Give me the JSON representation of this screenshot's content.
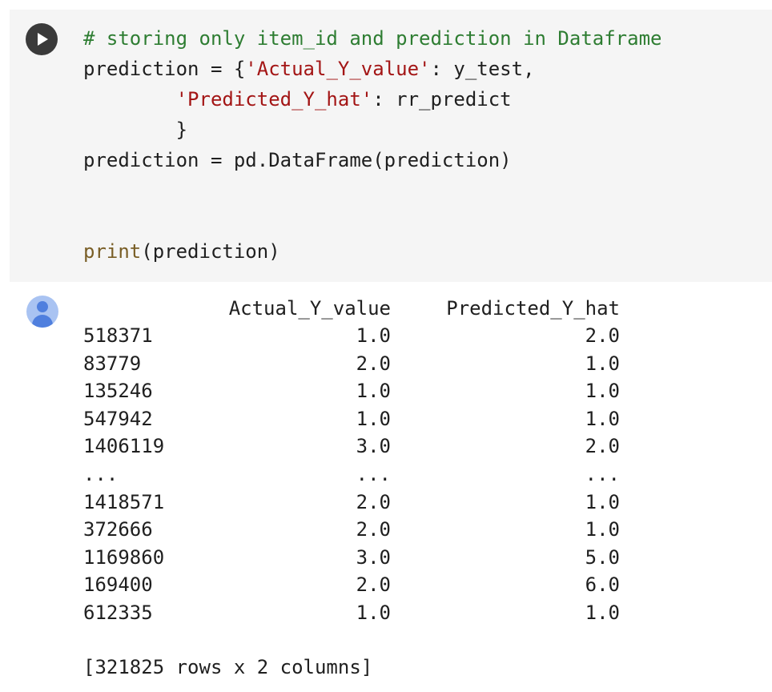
{
  "code_cell": {
    "run_button_icon": "play-icon",
    "lines": [
      [
        {
          "t": "# storing only item_id and prediction in Dataframe",
          "c": "comment"
        }
      ],
      [
        {
          "t": "prediction = {",
          "c": "plain"
        },
        {
          "t": "'Actual_Y_value'",
          "c": "string"
        },
        {
          "t": ": y_test,",
          "c": "plain"
        }
      ],
      [
        {
          "t": "        ",
          "c": "plain"
        },
        {
          "t": "'Predicted_Y_hat'",
          "c": "string"
        },
        {
          "t": ": rr_predict",
          "c": "plain"
        }
      ],
      [
        {
          "t": "        }",
          "c": "plain"
        }
      ],
      [
        {
          "t": "prediction = pd.DataFrame(prediction)",
          "c": "plain"
        }
      ],
      [
        {
          "t": "",
          "c": "plain"
        }
      ],
      [
        {
          "t": "",
          "c": "plain"
        }
      ],
      [
        {
          "t": "print",
          "c": "builtin"
        },
        {
          "t": "(prediction)",
          "c": "plain"
        }
      ]
    ]
  },
  "output": {
    "avatar_icon": "user-avatar-icon",
    "headers": {
      "actual": "Actual_Y_value",
      "predicted": "Predicted_Y_hat"
    },
    "rows": [
      {
        "index": "518371",
        "actual": "1.0",
        "predicted": "2.0"
      },
      {
        "index": "83779",
        "actual": "2.0",
        "predicted": "1.0"
      },
      {
        "index": "135246",
        "actual": "1.0",
        "predicted": "1.0"
      },
      {
        "index": "547942",
        "actual": "1.0",
        "predicted": "1.0"
      },
      {
        "index": "1406119",
        "actual": "3.0",
        "predicted": "2.0"
      },
      {
        "index": "...",
        "actual": "...",
        "predicted": "..."
      },
      {
        "index": "1418571",
        "actual": "2.0",
        "predicted": "1.0"
      },
      {
        "index": "372666",
        "actual": "2.0",
        "predicted": "1.0"
      },
      {
        "index": "1169860",
        "actual": "3.0",
        "predicted": "5.0"
      },
      {
        "index": "169400",
        "actual": "2.0",
        "predicted": "6.0"
      },
      {
        "index": "612335",
        "actual": "1.0",
        "predicted": "1.0"
      }
    ],
    "summary": "[321825 rows x 2 columns]"
  }
}
